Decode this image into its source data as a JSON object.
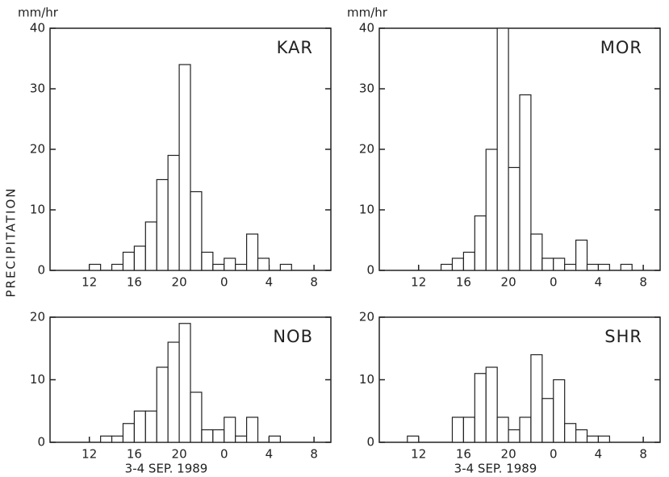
{
  "chart_data": [
    {
      "type": "histogram",
      "title": "KAR",
      "y_unit": "mm/hr",
      "ylabel": "PRECIPITATION",
      "bins": [
        11,
        12,
        13,
        14,
        15,
        16,
        17,
        18,
        19,
        20,
        21,
        22,
        23,
        24,
        25,
        26,
        27,
        28,
        29,
        30,
        31,
        32
      ],
      "values": [
        0,
        1,
        0,
        1,
        3,
        4,
        8,
        15,
        19,
        34,
        13,
        3,
        1,
        2,
        1,
        6,
        2,
        0,
        1,
        0,
        0
      ],
      "xlim": [
        8.5,
        33.5
      ],
      "xticks": [
        12,
        16,
        20,
        {
          "value": 24,
          "label": "0"
        },
        {
          "value": 28,
          "label": "4"
        },
        {
          "value": 32,
          "label": "8"
        }
      ],
      "ylim": [
        0,
        40
      ],
      "yticks": [
        0,
        10,
        20,
        30,
        40
      ]
    },
    {
      "type": "histogram",
      "title": "MOR",
      "y_unit": "mm/hr",
      "bins": [
        11,
        12,
        13,
        14,
        15,
        16,
        17,
        18,
        19,
        20,
        21,
        22,
        23,
        24,
        25,
        26,
        27,
        28,
        29,
        30,
        31,
        32
      ],
      "values": [
        0,
        0,
        0,
        1,
        2,
        3,
        9,
        20,
        40,
        17,
        29,
        6,
        2,
        2,
        1,
        5,
        1,
        1,
        0,
        1,
        0
      ],
      "xlim": [
        8.5,
        33.5
      ],
      "xticks": [
        12,
        16,
        20,
        {
          "value": 24,
          "label": "0"
        },
        {
          "value": 28,
          "label": "4"
        },
        {
          "value": 32,
          "label": "8"
        }
      ],
      "ylim": [
        0,
        40
      ],
      "yticks": [
        0,
        10,
        20,
        30,
        40
      ]
    },
    {
      "type": "histogram",
      "title": "NOB",
      "xlabel": "3-4 SEP. 1989",
      "bins": [
        11,
        12,
        13,
        14,
        15,
        16,
        17,
        18,
        19,
        20,
        21,
        22,
        23,
        24,
        25,
        26,
        27,
        28,
        29,
        30,
        31,
        32
      ],
      "values": [
        0,
        0,
        1,
        1,
        3,
        5,
        5,
        12,
        16,
        19,
        8,
        2,
        2,
        4,
        1,
        4,
        0,
        1,
        0,
        0,
        0
      ],
      "xlim": [
        8.5,
        33.5
      ],
      "xticks": [
        12,
        16,
        20,
        {
          "value": 24,
          "label": "0"
        },
        {
          "value": 28,
          "label": "4"
        },
        {
          "value": 32,
          "label": "8"
        }
      ],
      "ylim": [
        0,
        20
      ],
      "yticks": [
        0,
        10,
        20
      ]
    },
    {
      "type": "histogram",
      "title": "SHR",
      "xlabel": "3-4 SEP. 1989",
      "bins": [
        11,
        12,
        13,
        14,
        15,
        16,
        17,
        18,
        19,
        20,
        21,
        22,
        23,
        24,
        25,
        26,
        27,
        28,
        29,
        30,
        31,
        32
      ],
      "values": [
        1,
        0,
        0,
        0,
        4,
        4,
        11,
        12,
        4,
        2,
        4,
        14,
        7,
        10,
        3,
        2,
        1,
        1,
        0,
        0,
        0
      ],
      "xlim": [
        8.5,
        33.5
      ],
      "xticks": [
        12,
        16,
        20,
        {
          "value": 24,
          "label": "0"
        },
        {
          "value": 28,
          "label": "4"
        },
        {
          "value": 32,
          "label": "8"
        }
      ],
      "ylim": [
        0,
        20
      ],
      "yticks": [
        0,
        10,
        20
      ]
    }
  ]
}
